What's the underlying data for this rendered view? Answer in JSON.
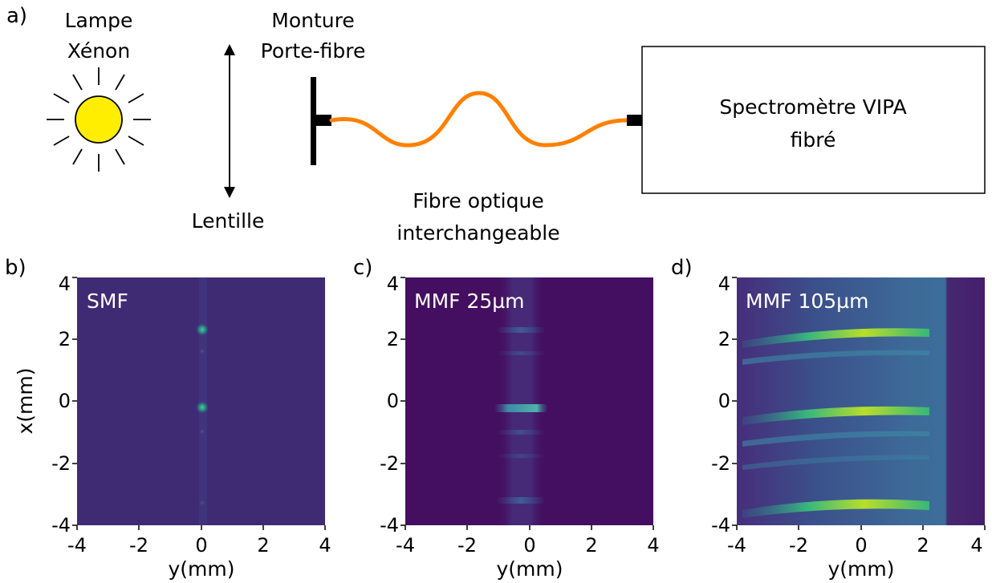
{
  "setup": {
    "panel_label": "a)",
    "lamp_label": [
      "Lampe",
      "Xénon"
    ],
    "lens_label": "Lentille",
    "mount_label": [
      "Monture",
      "Porte-fibre"
    ],
    "fiber_label": [
      "Fibre optique",
      "interchangeable"
    ],
    "spectrometer_label": [
      "Spectromètre VIPA",
      "fibré"
    ],
    "colors": {
      "sun": "#ffee00",
      "fiber": "#ff8000",
      "line": "#000000"
    }
  },
  "panels": [
    {
      "label": "b)",
      "title": "SMF",
      "xlabel": "y(mm)",
      "ylabel": "x(mm)",
      "background": "#3f2a74"
    },
    {
      "label": "c)",
      "title": "MMF 25µm",
      "xlabel": "y(mm)",
      "ylabel": "",
      "background": "#440f60"
    },
    {
      "label": "d)",
      "title": "MMF 105µm",
      "xlabel": "y(mm)",
      "ylabel": "",
      "background": "#3d2b78"
    }
  ],
  "chart_data": [
    {
      "type": "heatmap",
      "title": "SMF",
      "xlabel": "y(mm)",
      "ylabel": "x(mm)",
      "xlim": [
        -4,
        4
      ],
      "ylim": [
        -4,
        4
      ],
      "xticks": [
        "-4",
        "-2",
        "0",
        "2",
        "4"
      ],
      "yticks": [
        "-4",
        "-2",
        "0",
        "2",
        "4"
      ],
      "colormap": "viridis",
      "bright_spots": [
        {
          "y": 0,
          "x": 2.2
        },
        {
          "y": 0,
          "x": -0.3
        }
      ]
    },
    {
      "type": "heatmap",
      "title": "MMF 25µm",
      "xlabel": "y(mm)",
      "ylabel": "",
      "xlim": [
        -4,
        4
      ],
      "ylim": [
        -4,
        4
      ],
      "xticks": [
        "-4",
        "-2",
        "0",
        "2",
        "4"
      ],
      "yticks": [
        "-4",
        "-2",
        "0",
        "2",
        "4"
      ],
      "colormap": "viridis",
      "bright_lines": [
        {
          "x": -0.3,
          "y_range": [
            -0.8,
            0.4
          ]
        },
        {
          "x": -1.1,
          "y_range": [
            -0.8,
            0.4
          ]
        },
        {
          "x": -3.3,
          "y_range": [
            -0.8,
            0.4
          ]
        }
      ]
    },
    {
      "type": "heatmap",
      "title": "MMF 105µm",
      "xlabel": "y(mm)",
      "ylabel": "",
      "xlim": [
        -4,
        4
      ],
      "ylim": [
        -4,
        4
      ],
      "xticks": [
        "-4",
        "-2",
        "0",
        "2",
        "4"
      ],
      "yticks": [
        "-4",
        "-2",
        "0",
        "2",
        "4"
      ],
      "colormap": "viridis",
      "bright_lines": [
        {
          "x": 2.2,
          "y_range": [
            -4,
            2.3
          ]
        },
        {
          "x": -0.4,
          "y_range": [
            -4,
            2.3
          ]
        },
        {
          "x": -3.4,
          "y_range": [
            -4,
            2.3
          ]
        }
      ]
    }
  ]
}
